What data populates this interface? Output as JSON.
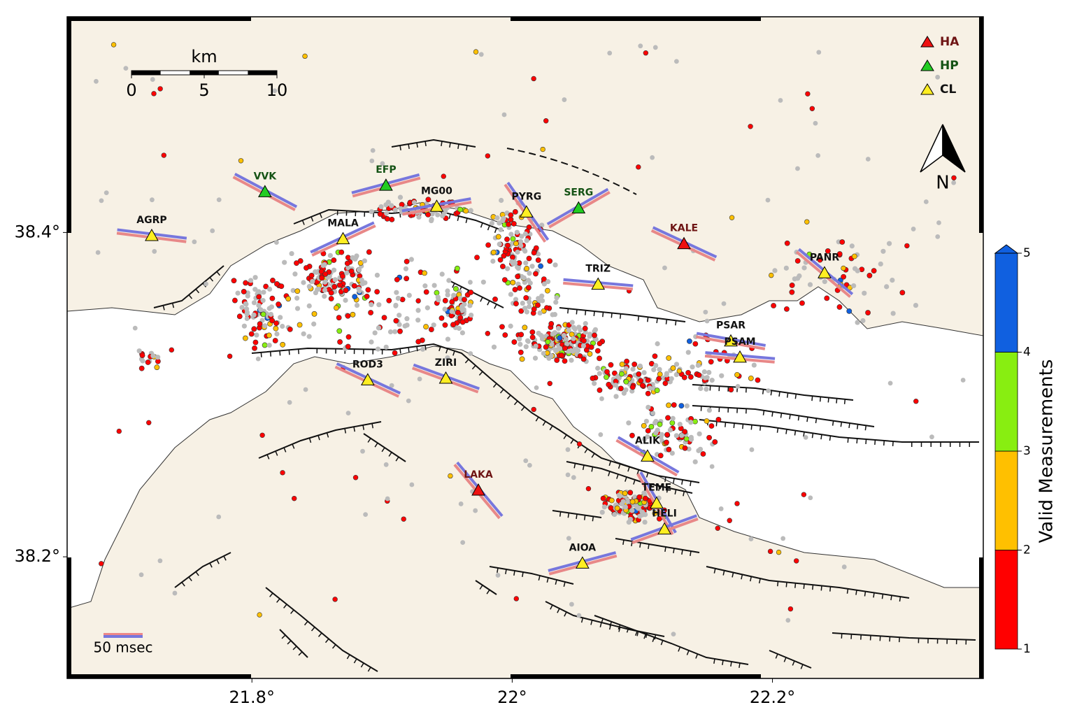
{
  "map": {
    "xlim": [
      21.658,
      22.362
    ],
    "ylim": [
      38.125,
      38.533
    ],
    "xticks": [
      {
        "value": 21.8,
        "label": "21.8°"
      },
      {
        "value": 22,
        "label": "22°"
      },
      {
        "value": 22.2,
        "label": "22.2°"
      }
    ],
    "yticks": [
      {
        "value": 38.2,
        "label": "38.2°"
      },
      {
        "value": 38.4,
        "label": "38.4°"
      }
    ],
    "legend": [
      {
        "name": "HA",
        "color": "#ee1111",
        "label_color": "#6e1414"
      },
      {
        "name": "HP",
        "color": "#22cc22",
        "label_color": "#145214"
      },
      {
        "name": "CL",
        "color": "#ffee22",
        "label_color": "#111111"
      }
    ],
    "stations": [
      {
        "name": "AGRP",
        "class": "CL",
        "lon": 21.723,
        "lat": 38.398,
        "azimuth": 97
      },
      {
        "name": "VVK",
        "class": "HP",
        "lon": 21.81,
        "lat": 38.425,
        "azimuth": 118
      },
      {
        "name": "EFP",
        "class": "HP",
        "lon": 21.903,
        "lat": 38.429,
        "azimuth": 75
      },
      {
        "name": "MG00",
        "class": "CL",
        "lon": 21.942,
        "lat": 38.416,
        "azimuth": 80
      },
      {
        "name": "PYRG",
        "class": "CL",
        "lon": 22.011,
        "lat": 38.4125,
        "azimuth": 145
      },
      {
        "name": "SERG",
        "class": "HP",
        "lon": 22.051,
        "lat": 38.415,
        "azimuth": 60
      },
      {
        "name": "MALA",
        "class": "CL",
        "lon": 21.87,
        "lat": 38.396,
        "azimuth": 65
      },
      {
        "name": "KALE",
        "class": "HA",
        "lon": 22.132,
        "lat": 38.393,
        "azimuth": 115
      },
      {
        "name": "TRIZ",
        "class": "CL",
        "lon": 22.066,
        "lat": 38.368,
        "azimuth": 95
      },
      {
        "name": "PANR",
        "class": "CL",
        "lon": 22.24,
        "lat": 38.375,
        "azimuth": 130
      },
      {
        "name": "PSAR",
        "class": "CL",
        "lon": 22.168,
        "lat": 38.333,
        "azimuth": 100
      },
      {
        "name": "PSAM",
        "class": "CL",
        "lon": 22.175,
        "lat": 38.323,
        "azimuth": 95
      },
      {
        "name": "ROD3",
        "class": "CL",
        "lon": 21.889,
        "lat": 38.309,
        "azimuth": 115
      },
      {
        "name": "ZIRI",
        "class": "CL",
        "lon": 21.949,
        "lat": 38.31,
        "azimuth": 110
      },
      {
        "name": "ALIK",
        "class": "CL",
        "lon": 22.104,
        "lat": 38.262,
        "azimuth": 120
      },
      {
        "name": "LAKA",
        "class": "HA",
        "lon": 21.974,
        "lat": 38.241,
        "azimuth": 140
      },
      {
        "name": "TEME",
        "class": "CL",
        "lon": 22.111,
        "lat": 38.233,
        "azimuth": 150
      },
      {
        "name": "HELI",
        "class": "CL",
        "lon": 22.117,
        "lat": 38.217,
        "azimuth": 70
      },
      {
        "name": "AIOA",
        "class": "CL",
        "lon": 22.054,
        "lat": 38.196,
        "azimuth": 75
      }
    ],
    "scale_bar": {
      "unit": "km",
      "ticks": [
        0,
        5,
        10
      ]
    },
    "delay_scale": "50 msec",
    "north": "N",
    "colorbar": {
      "label": "Valid Measurements",
      "ticks": [
        1,
        2,
        3,
        4,
        5
      ],
      "colors": [
        "#ff0000",
        "#ffc000",
        "#88ee11",
        "#1060e0"
      ]
    }
  }
}
